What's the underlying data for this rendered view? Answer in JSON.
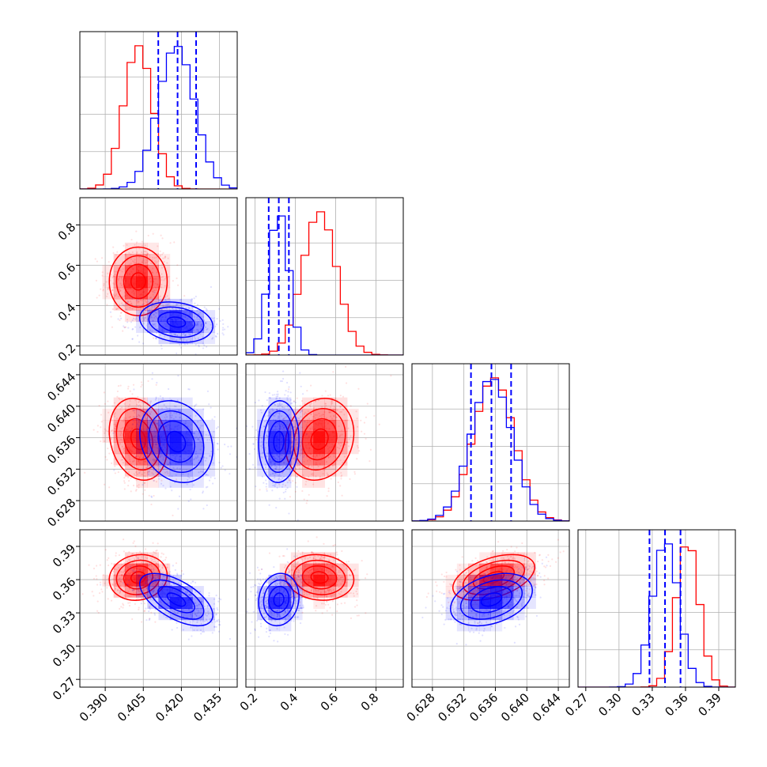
{
  "chart_data": {
    "type": "corner",
    "title": "",
    "grid": true,
    "params": [
      {
        "lim": [
          0.38,
          0.442
        ],
        "ticks": [
          "0.390",
          "0.405",
          "0.420",
          "0.435"
        ],
        "tick_values": [
          0.39,
          0.405,
          0.42,
          0.435
        ]
      },
      {
        "lim": [
          0.155,
          0.935
        ],
        "ticks": [
          "0.2",
          "0.4",
          "0.6",
          "0.8"
        ],
        "tick_values": [
          0.2,
          0.4,
          0.6,
          0.8
        ]
      },
      {
        "lim": [
          0.6254,
          0.6454
        ],
        "ticks": [
          "0.628",
          "0.632",
          "0.636",
          "0.640",
          "0.644"
        ],
        "tick_values": [
          0.628,
          0.632,
          0.636,
          0.64,
          0.644
        ]
      },
      {
        "lim": [
          0.263,
          0.405
        ],
        "ticks": [
          "0.27",
          "0.30",
          "0.33",
          "0.36",
          "0.39"
        ],
        "tick_values": [
          0.27,
          0.3,
          0.33,
          0.36,
          0.39
        ]
      }
    ],
    "series": [
      {
        "color": "#ff0000",
        "mean": [
          0.403,
          0.52,
          0.6358,
          0.362
        ],
        "sd": [
          0.0057,
          0.085,
          0.0026,
          0.0103
        ],
        "corr": [
          [
            1,
            0,
            -0.2,
            0.1
          ],
          [
            0,
            1,
            0.15,
            -0.1
          ],
          [
            -0.2,
            0.15,
            1,
            0.45
          ],
          [
            0.1,
            -0.1,
            0.45,
            1
          ]
        ]
      },
      {
        "color": "#0000ff",
        "mean": [
          0.418,
          0.318,
          0.6355,
          0.342
        ],
        "sd": [
          0.0072,
          0.05,
          0.0026,
          0.0118
        ],
        "corr": [
          [
            1,
            -0.2,
            -0.2,
            -0.6
          ],
          [
            -0.2,
            1,
            0.05,
            0.1
          ],
          [
            -0.2,
            0.05,
            1,
            0.35
          ],
          [
            -0.6,
            0.1,
            0.35,
            1
          ]
        ]
      }
    ],
    "quantiles": [
      [
        0.4109,
        0.4185,
        0.4258
      ],
      [
        0.268,
        0.318,
        0.368
      ],
      [
        0.6329,
        0.6355,
        0.638
      ],
      [
        0.3275,
        0.3415,
        0.3555
      ]
    ],
    "quantile_color": "#0000ff"
  }
}
